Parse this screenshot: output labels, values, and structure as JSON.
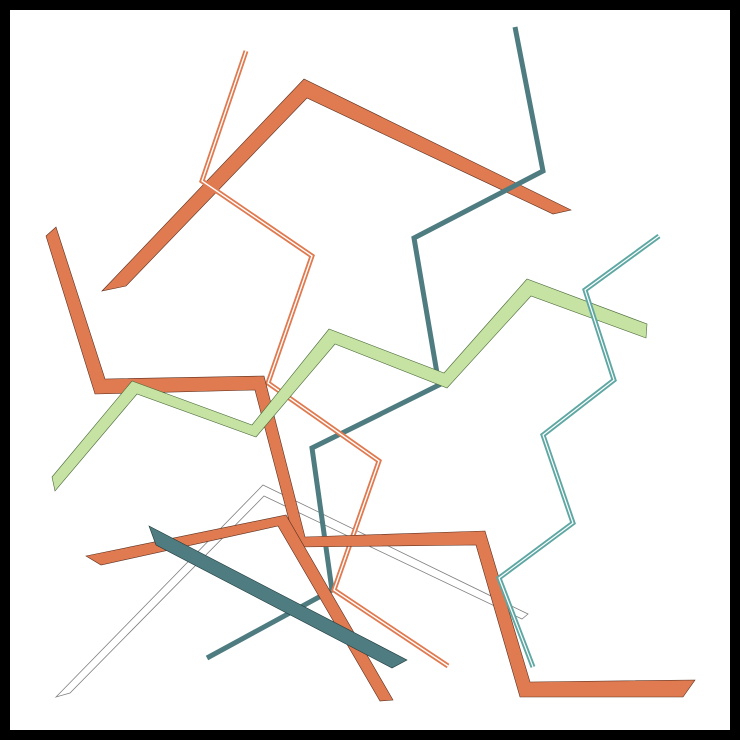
{
  "colors": {
    "background": "#ffffff",
    "frame": "#000000",
    "orange": "#e07a50",
    "dark_teal": "#4e7c80",
    "light_green": "#c7e3a4",
    "teal": "#5fa7a3",
    "outline": "#808080"
  }
}
